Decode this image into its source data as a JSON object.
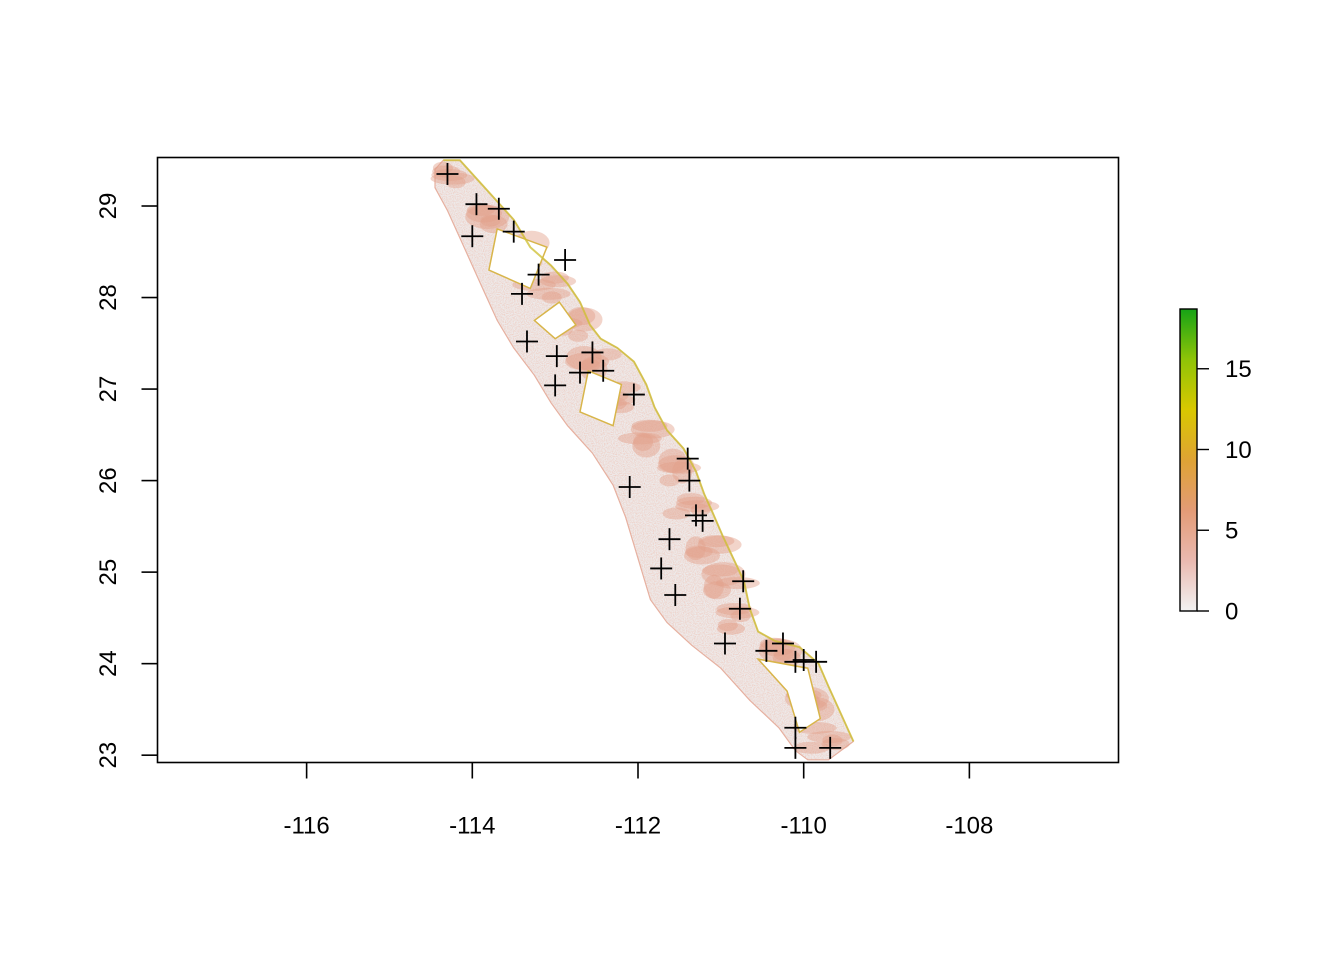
{
  "chart_data": {
    "type": "heatmap",
    "title": "",
    "xlabel": "",
    "ylabel": "",
    "xlim": [
      -117.8,
      -106.2
    ],
    "ylim": [
      22.92,
      29.53
    ],
    "x_ticks": [
      {
        "value": -116,
        "label": "-116"
      },
      {
        "value": -114,
        "label": "-114"
      },
      {
        "value": -112,
        "label": "-112"
      },
      {
        "value": -110,
        "label": "-110"
      },
      {
        "value": -108,
        "label": "-108"
      }
    ],
    "y_ticks": [
      {
        "value": 23,
        "label": "23"
      },
      {
        "value": 24,
        "label": "24"
      },
      {
        "value": 25,
        "label": "25"
      },
      {
        "value": 26,
        "label": "26"
      },
      {
        "value": 27,
        "label": "27"
      },
      {
        "value": 28,
        "label": "28"
      },
      {
        "value": 29,
        "label": "29"
      }
    ],
    "legend": {
      "placement": "right",
      "range": [
        0,
        18.7
      ],
      "ticks": [
        {
          "value": 0,
          "label": "0"
        },
        {
          "value": 5,
          "label": "5"
        },
        {
          "value": 10,
          "label": "10"
        },
        {
          "value": 15,
          "label": "15"
        }
      ],
      "colors": [
        "#f2f2f2",
        "#eab9b0",
        "#e39b76",
        "#dfa334",
        "#d9c800",
        "#8fc407",
        "#16a316"
      ]
    },
    "points": [
      {
        "lon": -114.3,
        "lat": 29.35
      },
      {
        "lon": -113.95,
        "lat": 29.02
      },
      {
        "lon": -113.68,
        "lat": 28.97
      },
      {
        "lon": -114.0,
        "lat": 28.67
      },
      {
        "lon": -113.5,
        "lat": 28.72
      },
      {
        "lon": -112.88,
        "lat": 28.41
      },
      {
        "lon": -113.2,
        "lat": 28.25
      },
      {
        "lon": -113.4,
        "lat": 28.04
      },
      {
        "lon": -113.34,
        "lat": 27.52
      },
      {
        "lon": -112.98,
        "lat": 27.36
      },
      {
        "lon": -112.55,
        "lat": 27.4
      },
      {
        "lon": -112.7,
        "lat": 27.18
      },
      {
        "lon": -112.42,
        "lat": 27.2
      },
      {
        "lon": -113.0,
        "lat": 27.04
      },
      {
        "lon": -112.05,
        "lat": 26.94
      },
      {
        "lon": -111.4,
        "lat": 26.24
      },
      {
        "lon": -111.38,
        "lat": 26.0
      },
      {
        "lon": -112.1,
        "lat": 25.93
      },
      {
        "lon": -111.3,
        "lat": 25.62
      },
      {
        "lon": -111.22,
        "lat": 25.56
      },
      {
        "lon": -111.62,
        "lat": 25.36
      },
      {
        "lon": -111.72,
        "lat": 25.04
      },
      {
        "lon": -111.55,
        "lat": 24.75
      },
      {
        "lon": -110.73,
        "lat": 24.9
      },
      {
        "lon": -110.77,
        "lat": 24.6
      },
      {
        "lon": -110.95,
        "lat": 24.22
      },
      {
        "lon": -110.45,
        "lat": 24.14
      },
      {
        "lon": -110.25,
        "lat": 24.22
      },
      {
        "lon": -110.1,
        "lat": 24.02
      },
      {
        "lon": -110.0,
        "lat": 24.04
      },
      {
        "lon": -109.85,
        "lat": 24.02
      },
      {
        "lon": -110.1,
        "lat": 23.3
      },
      {
        "lon": -110.1,
        "lat": 23.08
      },
      {
        "lon": -109.68,
        "lat": 23.08
      }
    ]
  }
}
